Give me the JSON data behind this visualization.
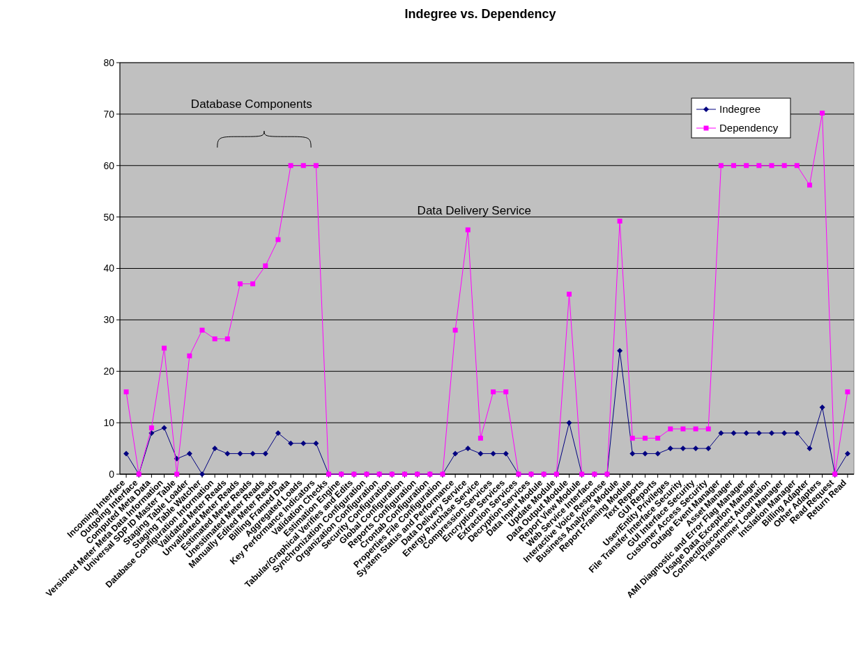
{
  "chart_data": {
    "type": "line",
    "title": "Indegree vs. Dependency",
    "categories": [
      "Incoming Interface",
      "Outgoing Interface",
      "Computed Meta Data",
      "Versioned Meter Meta Data Information",
      "Universal SDP ID Master Table",
      "Staging Table Loader",
      "Staging Table Watcher",
      "Database Configuration Information",
      "Validated Meter Reads",
      "Unvalidated Meter Reads",
      "Estimated Meter Reads",
      "Unestimated Meter Reads",
      "Manually Edited Meter Reads",
      "Billing Framed Data",
      "Aggregated Loads",
      "Key Performance Indicators",
      "Validation Checks",
      "Estimation Engine",
      "Tabular/Graphical Verifies and Edits",
      "Synchronization Configuration",
      "Organization Configuration",
      "Security Configuration",
      "Global Configuration",
      "Reports Configuration",
      "Crontab Configuration",
      "Properties File Configuration",
      "System Status and Performance",
      "Data Delivery Service",
      "Energy Purchase Service",
      "Compression Services",
      "Encryption Services",
      "Extraction Services",
      "Decryption Services",
      "Data Input Module",
      "Update Module",
      "Data Output Module",
      "Report View Module",
      "Web Service Interface",
      "Interactive Voice Response",
      "Business Analytics Module",
      "Report Framing Module",
      "Text Reports",
      "GUI Reports",
      "User/Entity Privileges",
      "File Transfer Interface Security",
      "GUI Interface Security",
      "Customer Access Security",
      "Outage Event Manager",
      "Asset Manager",
      "AMI Diagnostic and Error Flag Manager",
      "Usage Data Exception Manager",
      "Connect/Disconnect Automation",
      "Transformer Load Manager",
      "Intslation Manager",
      "Billing Adapter",
      "Other Adapters",
      "Read Request",
      "Return Read"
    ],
    "series": [
      {
        "name": "Indegree",
        "color": "#000080",
        "marker": "diamond",
        "values": [
          4,
          0,
          8,
          9,
          3,
          4,
          0,
          5,
          4,
          4,
          4,
          4,
          8,
          6,
          6,
          6,
          0,
          0,
          0,
          0,
          0,
          0,
          0,
          0,
          0,
          0,
          4,
          5,
          4,
          4,
          4,
          0,
          0,
          0,
          0,
          10,
          0,
          0,
          0,
          24,
          4,
          4,
          4,
          5,
          5,
          5,
          5,
          8,
          8,
          8,
          8,
          8,
          8,
          8,
          5,
          13,
          0,
          4
        ]
      },
      {
        "name": "Dependency",
        "color": "#ff00ff",
        "marker": "square",
        "values": [
          16,
          0,
          9,
          24.5,
          0,
          23,
          28,
          26.3,
          26.3,
          37,
          37,
          40.5,
          45.6,
          60,
          60,
          60,
          0,
          0,
          0,
          0,
          0,
          0,
          0,
          0,
          0,
          0,
          28,
          47.5,
          7,
          16,
          16,
          0,
          0,
          0,
          0,
          35,
          0,
          0,
          0,
          49.2,
          7,
          7,
          7,
          8.8,
          8.8,
          8.8,
          8.8,
          60,
          60,
          60,
          60,
          60,
          60,
          60,
          56.2,
          70.2,
          0,
          16
        ]
      }
    ],
    "ylim": [
      0,
      80
    ],
    "yticks": [
      0,
      10,
      20,
      30,
      40,
      50,
      60,
      70,
      80
    ],
    "grid": "y",
    "legend": "top right",
    "line_style": "solid",
    "annotations": [
      "Database Components",
      "Data Delivery Service"
    ]
  }
}
